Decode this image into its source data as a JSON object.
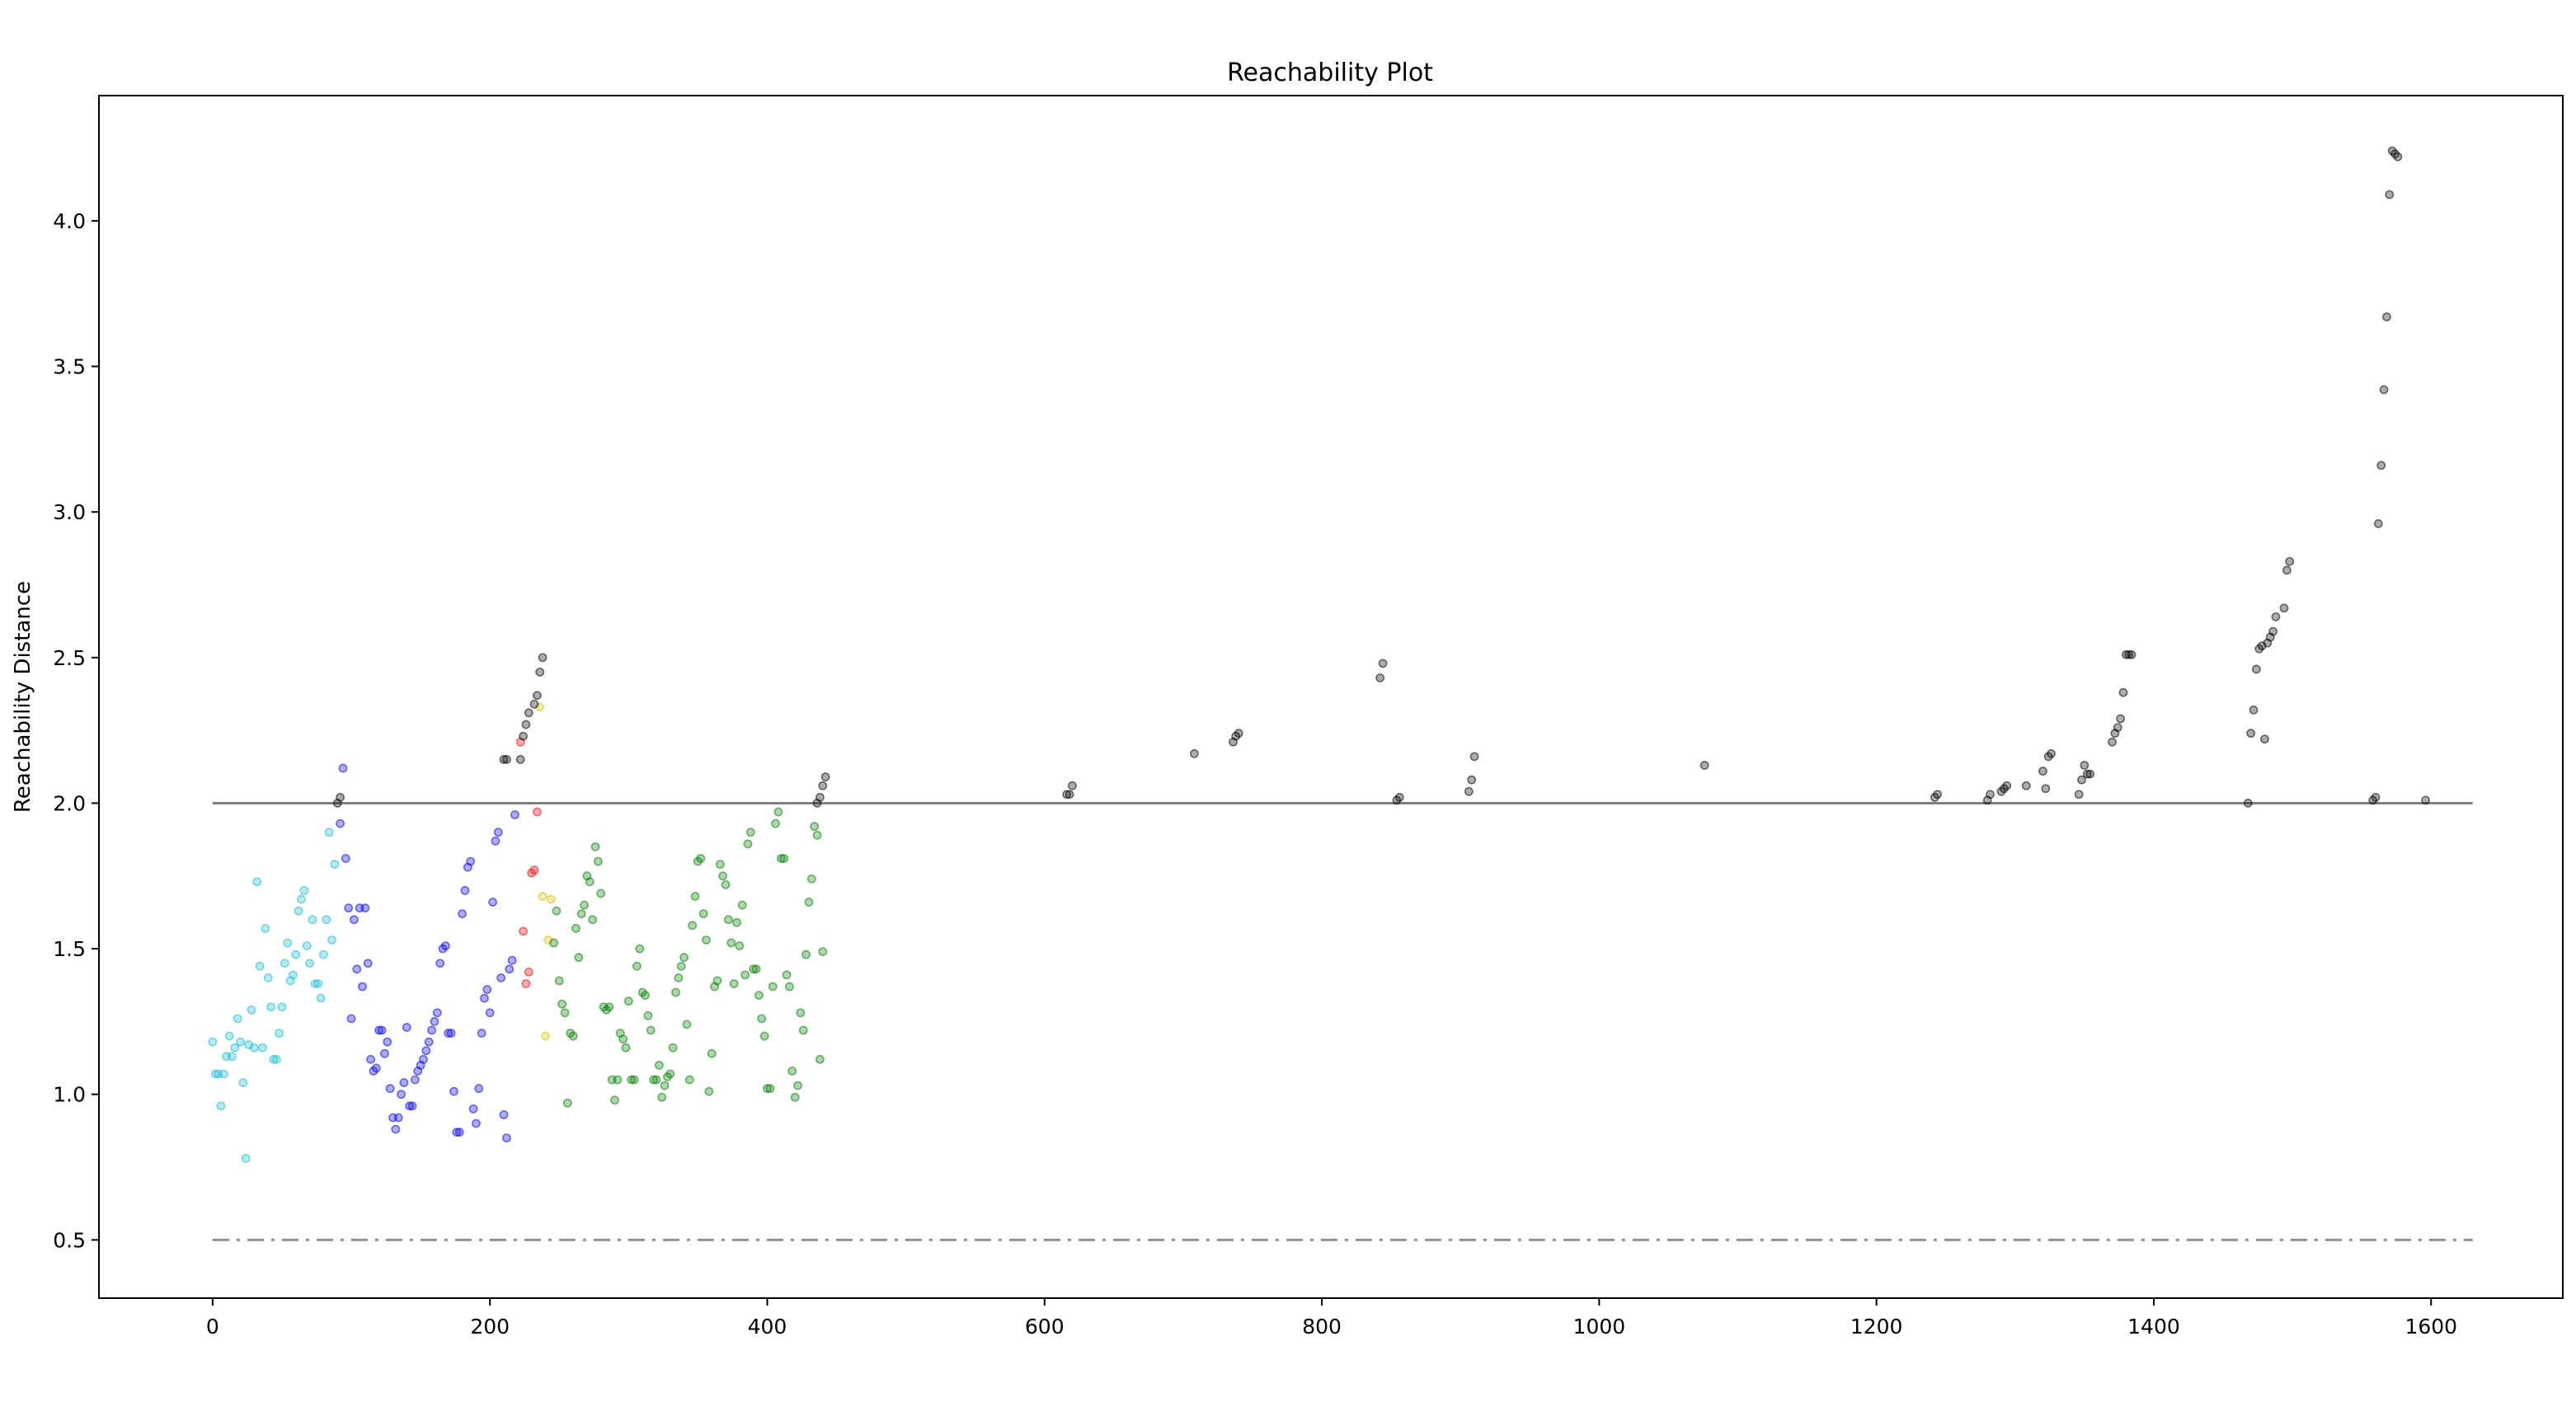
{
  "chart_data": {
    "type": "scatter",
    "title": "Reachability Plot",
    "xlabel": "",
    "ylabel": "Reachability Distance",
    "xlim": [
      -82,
      1695
    ],
    "ylim": [
      0.3,
      4.43
    ],
    "x_ticks": [
      0,
      200,
      400,
      600,
      800,
      1000,
      1200,
      1400,
      1600
    ],
    "y_ticks": [
      0.5,
      1.0,
      1.5,
      2.0,
      2.5,
      3.0,
      3.5,
      4.0
    ],
    "x_tick_labels": [
      "0",
      "200",
      "400",
      "600",
      "800",
      "1000",
      "1200",
      "1400",
      "1600"
    ],
    "y_tick_labels": [
      "0.5",
      "1.0",
      "1.5",
      "2.0",
      "2.5",
      "3.0",
      "3.5",
      "4.0"
    ],
    "grid": false,
    "legend": "none",
    "reference_lines": [
      {
        "y": 2.0,
        "x_range": [
          0,
          1630
        ],
        "style": "solid",
        "color": "#808080"
      },
      {
        "y": 0.5,
        "x_range": [
          0,
          1630
        ],
        "style": "dashdot",
        "color": "#909090"
      }
    ],
    "series": [
      {
        "color": "#17becf",
        "points": [
          [
            0,
            1.18
          ],
          [
            2,
            1.07
          ],
          [
            4,
            1.07
          ],
          [
            6,
            0.96
          ],
          [
            8,
            1.07
          ],
          [
            10,
            1.13
          ],
          [
            12,
            1.2
          ],
          [
            14,
            1.13
          ],
          [
            16,
            1.16
          ],
          [
            18,
            1.26
          ],
          [
            20,
            1.18
          ],
          [
            22,
            1.04
          ],
          [
            24,
            0.78
          ],
          [
            26,
            1.17
          ],
          [
            28,
            1.29
          ],
          [
            30,
            1.16
          ],
          [
            32,
            1.73
          ],
          [
            34,
            1.44
          ],
          [
            36,
            1.16
          ],
          [
            38,
            1.57
          ],
          [
            40,
            1.4
          ],
          [
            42,
            1.3
          ],
          [
            44,
            1.12
          ],
          [
            46,
            1.12
          ],
          [
            48,
            1.21
          ],
          [
            50,
            1.3
          ],
          [
            52,
            1.45
          ],
          [
            54,
            1.52
          ],
          [
            56,
            1.39
          ],
          [
            58,
            1.41
          ],
          [
            60,
            1.48
          ],
          [
            62,
            1.63
          ],
          [
            64,
            1.67
          ],
          [
            66,
            1.7
          ],
          [
            68,
            1.51
          ],
          [
            70,
            1.45
          ],
          [
            72,
            1.6
          ],
          [
            74,
            1.38
          ],
          [
            76,
            1.38
          ],
          [
            78,
            1.33
          ],
          [
            80,
            1.48
          ],
          [
            82,
            1.6
          ],
          [
            84,
            1.9
          ],
          [
            86,
            1.53
          ],
          [
            88,
            1.79
          ]
        ]
      },
      {
        "color": "#0000ff",
        "points": [
          [
            92,
            1.93
          ],
          [
            94,
            2.12
          ],
          [
            96,
            1.81
          ],
          [
            98,
            1.64
          ],
          [
            100,
            1.26
          ],
          [
            102,
            1.6
          ],
          [
            104,
            1.43
          ],
          [
            106,
            1.64
          ],
          [
            108,
            1.37
          ],
          [
            110,
            1.64
          ],
          [
            112,
            1.45
          ],
          [
            114,
            1.12
          ],
          [
            116,
            1.08
          ],
          [
            118,
            1.09
          ],
          [
            120,
            1.22
          ],
          [
            122,
            1.22
          ],
          [
            124,
            1.14
          ],
          [
            126,
            1.18
          ],
          [
            128,
            1.02
          ],
          [
            130,
            0.92
          ],
          [
            132,
            0.88
          ],
          [
            134,
            0.92
          ],
          [
            136,
            1.0
          ],
          [
            138,
            1.04
          ],
          [
            140,
            1.23
          ],
          [
            142,
            0.96
          ],
          [
            144,
            0.96
          ],
          [
            146,
            1.05
          ],
          [
            148,
            1.08
          ],
          [
            150,
            1.1
          ],
          [
            152,
            1.12
          ],
          [
            154,
            1.15
          ],
          [
            156,
            1.18
          ],
          [
            158,
            1.22
          ],
          [
            160,
            1.25
          ],
          [
            162,
            1.28
          ],
          [
            164,
            1.45
          ],
          [
            166,
            1.5
          ],
          [
            168,
            1.51
          ],
          [
            170,
            1.21
          ],
          [
            172,
            1.21
          ],
          [
            174,
            1.01
          ],
          [
            176,
            0.87
          ],
          [
            178,
            0.87
          ],
          [
            180,
            1.62
          ],
          [
            182,
            1.7
          ],
          [
            184,
            1.78
          ],
          [
            186,
            1.8
          ],
          [
            188,
            0.95
          ],
          [
            190,
            0.9
          ],
          [
            192,
            1.02
          ],
          [
            194,
            1.21
          ],
          [
            196,
            1.33
          ],
          [
            198,
            1.36
          ],
          [
            200,
            1.28
          ],
          [
            202,
            1.66
          ],
          [
            204,
            1.87
          ],
          [
            206,
            1.9
          ],
          [
            208,
            1.4
          ],
          [
            210,
            0.93
          ],
          [
            212,
            0.85
          ],
          [
            214,
            1.43
          ],
          [
            216,
            1.46
          ],
          [
            218,
            1.96
          ]
        ]
      },
      {
        "color": "#ff0000",
        "points": [
          [
            222,
            2.21
          ],
          [
            224,
            1.56
          ],
          [
            226,
            1.38
          ],
          [
            228,
            1.42
          ],
          [
            230,
            1.76
          ],
          [
            232,
            1.77
          ],
          [
            234,
            1.97
          ]
        ]
      },
      {
        "color": "#d4c200",
        "points": [
          [
            236,
            2.33
          ],
          [
            238,
            1.68
          ],
          [
            240,
            1.2
          ],
          [
            242,
            1.53
          ],
          [
            244,
            1.67
          ]
        ]
      },
      {
        "color": "#008000",
        "points": [
          [
            246,
            1.52
          ],
          [
            248,
            1.63
          ],
          [
            250,
            1.39
          ],
          [
            252,
            1.31
          ],
          [
            254,
            1.28
          ],
          [
            256,
            0.97
          ],
          [
            258,
            1.21
          ],
          [
            260,
            1.2
          ],
          [
            262,
            1.57
          ],
          [
            264,
            1.47
          ],
          [
            266,
            1.62
          ],
          [
            268,
            1.65
          ],
          [
            270,
            1.75
          ],
          [
            272,
            1.73
          ],
          [
            274,
            1.6
          ],
          [
            276,
            1.85
          ],
          [
            278,
            1.8
          ],
          [
            280,
            1.69
          ],
          [
            282,
            1.3
          ],
          [
            284,
            1.29
          ],
          [
            286,
            1.3
          ],
          [
            288,
            1.05
          ],
          [
            290,
            0.98
          ],
          [
            292,
            1.05
          ],
          [
            294,
            1.21
          ],
          [
            296,
            1.19
          ],
          [
            298,
            1.16
          ],
          [
            300,
            1.32
          ],
          [
            302,
            1.05
          ],
          [
            304,
            1.05
          ],
          [
            306,
            1.44
          ],
          [
            308,
            1.5
          ],
          [
            310,
            1.35
          ],
          [
            312,
            1.34
          ],
          [
            314,
            1.27
          ],
          [
            316,
            1.22
          ],
          [
            318,
            1.05
          ],
          [
            320,
            1.05
          ],
          [
            322,
            1.1
          ],
          [
            324,
            0.99
          ],
          [
            326,
            1.03
          ],
          [
            328,
            1.06
          ],
          [
            330,
            1.07
          ],
          [
            332,
            1.16
          ],
          [
            334,
            1.35
          ],
          [
            336,
            1.4
          ],
          [
            338,
            1.44
          ],
          [
            340,
            1.47
          ],
          [
            342,
            1.24
          ],
          [
            344,
            1.05
          ],
          [
            346,
            1.58
          ],
          [
            348,
            1.68
          ],
          [
            350,
            1.8
          ],
          [
            352,
            1.81
          ],
          [
            354,
            1.62
          ],
          [
            356,
            1.53
          ],
          [
            358,
            1.01
          ],
          [
            360,
            1.14
          ],
          [
            362,
            1.37
          ],
          [
            364,
            1.39
          ],
          [
            366,
            1.79
          ],
          [
            368,
            1.75
          ],
          [
            370,
            1.72
          ],
          [
            372,
            1.6
          ],
          [
            374,
            1.52
          ],
          [
            376,
            1.38
          ],
          [
            378,
            1.59
          ],
          [
            380,
            1.51
          ],
          [
            382,
            1.65
          ],
          [
            384,
            1.41
          ],
          [
            386,
            1.86
          ],
          [
            388,
            1.9
          ],
          [
            390,
            1.43
          ],
          [
            392,
            1.43
          ],
          [
            394,
            1.34
          ],
          [
            396,
            1.26
          ],
          [
            398,
            1.2
          ],
          [
            400,
            1.02
          ],
          [
            402,
            1.02
          ],
          [
            404,
            1.37
          ],
          [
            406,
            1.93
          ],
          [
            408,
            1.97
          ],
          [
            410,
            1.81
          ],
          [
            412,
            1.81
          ],
          [
            414,
            1.41
          ],
          [
            416,
            1.37
          ],
          [
            418,
            1.08
          ],
          [
            420,
            0.99
          ],
          [
            422,
            1.03
          ],
          [
            424,
            1.28
          ],
          [
            426,
            1.22
          ],
          [
            428,
            1.48
          ],
          [
            430,
            1.66
          ],
          [
            432,
            1.74
          ],
          [
            434,
            1.92
          ],
          [
            436,
            1.89
          ],
          [
            438,
            1.12
          ],
          [
            440,
            1.49
          ]
        ]
      },
      {
        "color": "#000000",
        "points": [
          [
            90,
            2.0
          ],
          [
            92,
            2.02
          ],
          [
            210,
            2.15
          ],
          [
            212,
            2.15
          ],
          [
            222,
            2.15
          ],
          [
            224,
            2.23
          ],
          [
            226,
            2.27
          ],
          [
            228,
            2.31
          ],
          [
            232,
            2.34
          ],
          [
            234,
            2.37
          ],
          [
            236,
            2.45
          ],
          [
            238,
            2.5
          ],
          [
            436,
            2.0
          ],
          [
            438,
            2.02
          ],
          [
            440,
            2.06
          ],
          [
            442,
            2.09
          ],
          [
            616,
            2.03
          ],
          [
            618,
            2.03
          ],
          [
            620,
            2.06
          ],
          [
            708,
            2.17
          ],
          [
            736,
            2.21
          ],
          [
            738,
            2.23
          ],
          [
            740,
            2.24
          ],
          [
            842,
            2.43
          ],
          [
            844,
            2.48
          ],
          [
            854,
            2.01
          ],
          [
            856,
            2.02
          ],
          [
            906,
            2.04
          ],
          [
            908,
            2.08
          ],
          [
            910,
            2.16
          ],
          [
            1076,
            2.13
          ],
          [
            1242,
            2.02
          ],
          [
            1244,
            2.03
          ],
          [
            1280,
            2.01
          ],
          [
            1282,
            2.03
          ],
          [
            1290,
            2.04
          ],
          [
            1292,
            2.05
          ],
          [
            1294,
            2.06
          ],
          [
            1308,
            2.06
          ],
          [
            1320,
            2.11
          ],
          [
            1322,
            2.05
          ],
          [
            1324,
            2.16
          ],
          [
            1326,
            2.17
          ],
          [
            1346,
            2.03
          ],
          [
            1348,
            2.08
          ],
          [
            1350,
            2.13
          ],
          [
            1352,
            2.1
          ],
          [
            1354,
            2.1
          ],
          [
            1370,
            2.21
          ],
          [
            1372,
            2.24
          ],
          [
            1374,
            2.26
          ],
          [
            1376,
            2.29
          ],
          [
            1378,
            2.38
          ],
          [
            1380,
            2.51
          ],
          [
            1382,
            2.51
          ],
          [
            1384,
            2.51
          ],
          [
            1468,
            2.0
          ],
          [
            1470,
            2.24
          ],
          [
            1472,
            2.32
          ],
          [
            1474,
            2.46
          ],
          [
            1476,
            2.53
          ],
          [
            1478,
            2.54
          ],
          [
            1480,
            2.22
          ],
          [
            1482,
            2.55
          ],
          [
            1484,
            2.57
          ],
          [
            1486,
            2.59
          ],
          [
            1488,
            2.64
          ],
          [
            1494,
            2.67
          ],
          [
            1496,
            2.8
          ],
          [
            1498,
            2.83
          ],
          [
            1558,
            2.01
          ],
          [
            1560,
            2.02
          ],
          [
            1562,
            2.96
          ],
          [
            1564,
            3.16
          ],
          [
            1566,
            3.42
          ],
          [
            1568,
            3.67
          ],
          [
            1570,
            4.09
          ],
          [
            1572,
            4.24
          ],
          [
            1574,
            4.23
          ],
          [
            1576,
            4.22
          ],
          [
            1596,
            2.01
          ]
        ]
      }
    ]
  }
}
